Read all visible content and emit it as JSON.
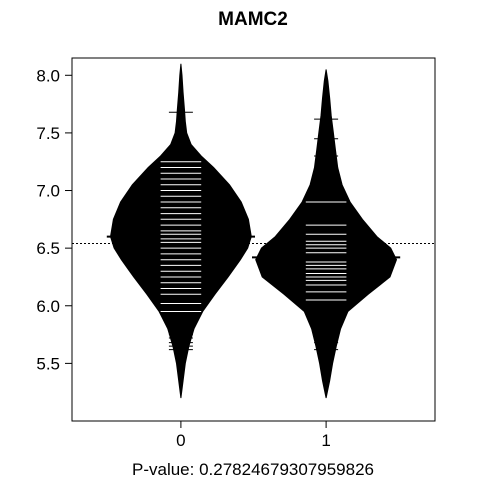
{
  "chart_data": {
    "type": "beanplot",
    "title": "MAMC2",
    "xlabel": "P-value: 0.27824679307959826",
    "ylabel": "",
    "categories": [
      "0",
      "1"
    ],
    "ylim": [
      5.0,
      8.15
    ],
    "y_ticks": [
      5.5,
      6.0,
      6.5,
      7.0,
      7.5,
      8.0
    ],
    "y_tick_labels": [
      "5.5",
      "6.0",
      "6.5",
      "7.0",
      "7.5",
      "8.0"
    ],
    "overall_mean": 6.54,
    "series": [
      {
        "category": "0",
        "mean": 6.6,
        "range": [
          5.2,
          8.1
        ],
        "density": [
          [
            5.2,
            0.0
          ],
          [
            5.35,
            0.03
          ],
          [
            5.5,
            0.06
          ],
          [
            5.65,
            0.11
          ],
          [
            5.8,
            0.18
          ],
          [
            5.95,
            0.3
          ],
          [
            6.1,
            0.47
          ],
          [
            6.25,
            0.65
          ],
          [
            6.4,
            0.82
          ],
          [
            6.5,
            0.92
          ],
          [
            6.6,
            0.97
          ],
          [
            6.75,
            0.93
          ],
          [
            6.9,
            0.83
          ],
          [
            7.05,
            0.67
          ],
          [
            7.2,
            0.45
          ],
          [
            7.3,
            0.28
          ],
          [
            7.4,
            0.14
          ],
          [
            7.5,
            0.08
          ],
          [
            7.6,
            0.06
          ],
          [
            7.7,
            0.05
          ],
          [
            7.85,
            0.03
          ],
          [
            8.0,
            0.015
          ],
          [
            8.1,
            0.0
          ]
        ],
        "observations": [
          5.62,
          5.65,
          5.68,
          5.72,
          5.75,
          5.8,
          5.88,
          5.95,
          6.02,
          6.1,
          6.15,
          6.2,
          6.25,
          6.3,
          6.35,
          6.4,
          6.45,
          6.5,
          6.55,
          6.58,
          6.62,
          6.65,
          6.7,
          6.75,
          6.8,
          6.85,
          6.9,
          6.95,
          7.0,
          7.05,
          7.1,
          7.15,
          7.2,
          7.25,
          7.3,
          7.68
        ]
      },
      {
        "category": "1",
        "mean": 6.42,
        "range": [
          5.2,
          8.05
        ],
        "density": [
          [
            5.2,
            0.0
          ],
          [
            5.35,
            0.05
          ],
          [
            5.5,
            0.09
          ],
          [
            5.65,
            0.14
          ],
          [
            5.8,
            0.2
          ],
          [
            5.95,
            0.3
          ],
          [
            6.1,
            0.58
          ],
          [
            6.25,
            0.88
          ],
          [
            6.4,
            0.97
          ],
          [
            6.5,
            0.89
          ],
          [
            6.6,
            0.7
          ],
          [
            6.75,
            0.5
          ],
          [
            6.9,
            0.33
          ],
          [
            7.05,
            0.22
          ],
          [
            7.2,
            0.16
          ],
          [
            7.35,
            0.13
          ],
          [
            7.5,
            0.1
          ],
          [
            7.65,
            0.07
          ],
          [
            7.8,
            0.05
          ],
          [
            7.95,
            0.025
          ],
          [
            8.05,
            0.0
          ]
        ],
        "observations": [
          5.62,
          5.68,
          5.72,
          5.78,
          5.82,
          5.9,
          6.05,
          6.12,
          6.18,
          6.22,
          6.25,
          6.28,
          6.32,
          6.35,
          6.38,
          6.42,
          6.46,
          6.5,
          6.53,
          6.56,
          6.62,
          6.7,
          6.9,
          7.0,
          7.1,
          7.2,
          7.3,
          7.45,
          7.62
        ]
      }
    ],
    "colors": {
      "bean": "#000000",
      "lines": "#ffffff",
      "axis": "#000000"
    }
  }
}
